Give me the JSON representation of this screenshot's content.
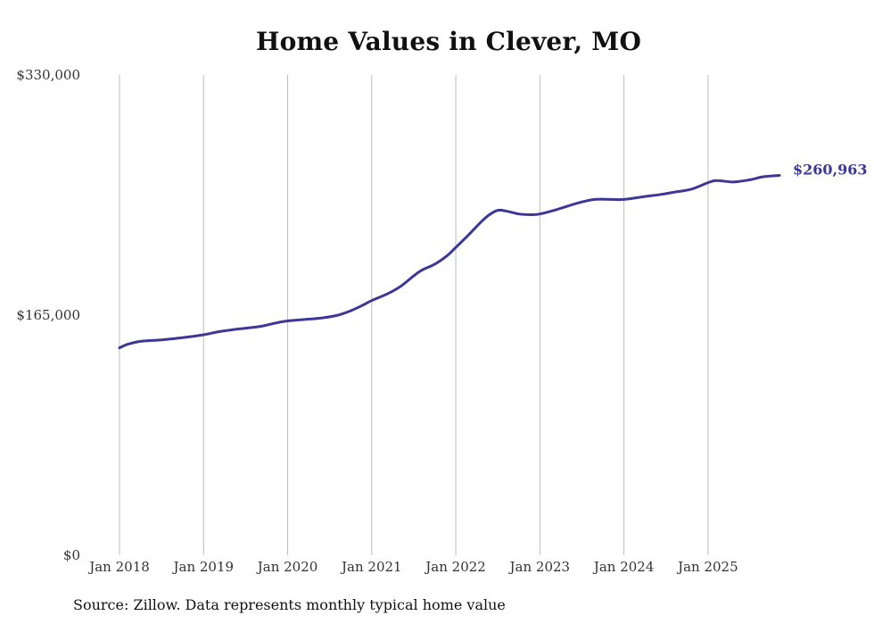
{
  "chart_data": {
    "type": "line",
    "title": "Home Values in Clever, MO",
    "source": "Source: Zillow. Data represents monthly typical home value",
    "xlabel": "",
    "ylabel": "",
    "ylim": [
      0,
      330000
    ],
    "y_ticks": [
      {
        "value": 0,
        "label": "$0"
      },
      {
        "value": 165000,
        "label": "$165,000"
      },
      {
        "value": 330000,
        "label": "$330,000"
      }
    ],
    "x_ticks": [
      {
        "value": 2018,
        "label": "Jan 2018"
      },
      {
        "value": 2019,
        "label": "Jan 2019"
      },
      {
        "value": 2020,
        "label": "Jan 2020"
      },
      {
        "value": 2021,
        "label": "Jan 2021"
      },
      {
        "value": 2022,
        "label": "Jan 2022"
      },
      {
        "value": 2023,
        "label": "Jan 2023"
      },
      {
        "value": 2024,
        "label": "Jan 2024"
      },
      {
        "value": 2025,
        "label": "Jan 2025"
      }
    ],
    "xlim": [
      2018,
      2025.85
    ],
    "vertical_gridlines": true,
    "line_color": "#3d3796",
    "end_label": "$260,963",
    "series": [
      {
        "name": "Typical home value",
        "x": [
          2018.0,
          2018.1,
          2018.25,
          2018.5,
          2018.75,
          2019.0,
          2019.17,
          2019.35,
          2019.5,
          2019.7,
          2019.85,
          2020.0,
          2020.2,
          2020.4,
          2020.6,
          2020.75,
          2020.9,
          2021.0,
          2021.2,
          2021.35,
          2021.5,
          2021.6,
          2021.75,
          2021.9,
          2022.0,
          2022.15,
          2022.3,
          2022.4,
          2022.5,
          2022.6,
          2022.75,
          2022.9,
          2023.0,
          2023.2,
          2023.45,
          2023.65,
          2023.85,
          2024.0,
          2024.25,
          2024.45,
          2024.6,
          2024.8,
          2025.0,
          2025.1,
          2025.3,
          2025.5,
          2025.65,
          2025.85
        ],
        "values": [
          142500,
          145000,
          147000,
          148000,
          149500,
          151500,
          153500,
          155000,
          156000,
          157500,
          159500,
          161000,
          162000,
          163000,
          165000,
          168000,
          172000,
          175000,
          180000,
          185000,
          192000,
          196000,
          200000,
          206000,
          211500,
          220000,
          229000,
          234000,
          237000,
          236500,
          234500,
          234000,
          234500,
          237500,
          242000,
          244500,
          244500,
          244500,
          246500,
          248000,
          249500,
          251500,
          256000,
          257500,
          256500,
          258000,
          260000,
          260963
        ]
      }
    ]
  }
}
